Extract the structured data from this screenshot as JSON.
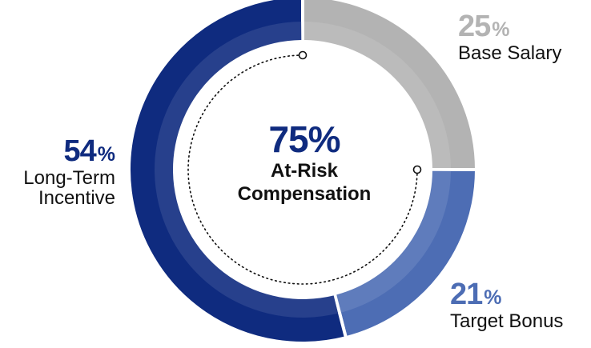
{
  "chart_data": {
    "type": "pie",
    "style": "donut",
    "categories": [
      "Base Salary",
      "Target Bonus",
      "Long-Term Incentive"
    ],
    "values": [
      25,
      21,
      54
    ],
    "value_labels": [
      "25",
      "21",
      "54"
    ],
    "percent_sign": "%",
    "colors": [
      "#b3b3b3",
      "#4d6db4",
      "#0f2b7f"
    ],
    "center": {
      "value": "75%",
      "label_line1": "At-Risk",
      "label_line2": "Compensation"
    }
  }
}
